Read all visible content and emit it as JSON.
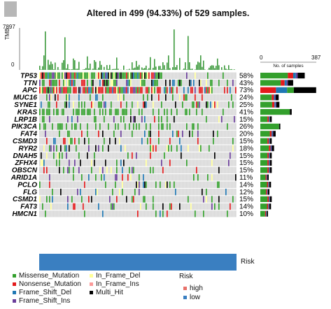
{
  "title": "Altered in 499 (94.33%) of 529 samples.",
  "tmb": {
    "axis_label": "TMB",
    "max_label": "7897",
    "min_label": "0"
  },
  "count_axis": {
    "min_label": "0",
    "max_label": "387",
    "label": "No. of samples"
  },
  "risk_bar_label": "Risk",
  "colors": {
    "Missense_Mutation": "#33a02c",
    "Nonsense_Mutation": "#e31a1c",
    "Frame_Shift_Del": "#1f78b4",
    "Frame_Shift_Ins": "#6a3d9a",
    "In_Frame_Del": "#ffff99",
    "In_Frame_Ins": "#fb9a99",
    "Multi_Hit": "#000000",
    "empty": "#d9d9d9",
    "risk_low": "#3a7fc1",
    "risk_high": "#e8716a"
  },
  "legend": {
    "mutation_items": [
      "Missense_Mutation",
      "Nonsense_Mutation",
      "Frame_Shift_Del",
      "Frame_Shift_Ins",
      "In_Frame_Del",
      "In_Frame_Ins",
      "Multi_Hit"
    ],
    "risk_title": "Risk",
    "risk_items": [
      "high",
      "low"
    ]
  },
  "chart_data": {
    "type": "heatmap",
    "title": "Altered in 499 (94.33%) of 529 samples.",
    "samples_altered": 499,
    "samples_total": 529,
    "tmb_range": [
      0,
      7897
    ],
    "count_range": [
      0,
      387
    ],
    "genes": [
      {
        "name": "TP53",
        "pct": "58%",
        "count": 307
      },
      {
        "name": "TTN",
        "pct": "43%",
        "count": 227
      },
      {
        "name": "APC",
        "pct": "73%",
        "count": 386
      },
      {
        "name": "MUC16",
        "pct": "24%",
        "count": 127
      },
      {
        "name": "SYNE1",
        "pct": "25%",
        "count": 132
      },
      {
        "name": "KRAS",
        "pct": "41%",
        "count": 217
      },
      {
        "name": "LRP1B",
        "pct": "15%",
        "count": 79
      },
      {
        "name": "PIK3CA",
        "pct": "26%",
        "count": 138
      },
      {
        "name": "FAT4",
        "pct": "20%",
        "count": 106
      },
      {
        "name": "CSMD3",
        "pct": "15%",
        "count": 79
      },
      {
        "name": "RYR2",
        "pct": "18%",
        "count": 95
      },
      {
        "name": "DNAH5",
        "pct": "15%",
        "count": 79
      },
      {
        "name": "ZFHX4",
        "pct": "15%",
        "count": 79
      },
      {
        "name": "OBSCN",
        "pct": "15%",
        "count": 79
      },
      {
        "name": "ARID1A",
        "pct": "11%",
        "count": 58
      },
      {
        "name": "PCLO",
        "pct": "14%",
        "count": 74
      },
      {
        "name": "FLG",
        "pct": "12%",
        "count": 63
      },
      {
        "name": "CSMD1",
        "pct": "15%",
        "count": 79
      },
      {
        "name": "FAT3",
        "pct": "14%",
        "count": 74
      },
      {
        "name": "HMCN1",
        "pct": "10%",
        "count": 53
      }
    ],
    "risk_group_shown": "low"
  }
}
